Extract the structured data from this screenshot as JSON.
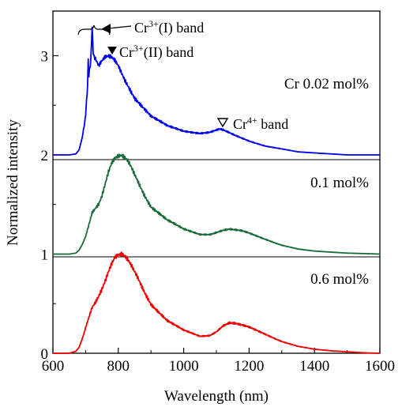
{
  "chart_data": {
    "type": "line",
    "xlabel": "Wavelength (nm)",
    "ylabel": "Normalized intensity",
    "xlim": [
      600,
      1600
    ],
    "ylim": [
      0,
      3.45
    ],
    "x_ticks": [
      600,
      800,
      1000,
      1200,
      1400,
      1600
    ],
    "y_ticks": [
      0,
      1,
      2,
      3
    ],
    "x_tick_labels": [
      "600",
      "800",
      "1000",
      "1200",
      "1400",
      "1600"
    ],
    "y_tick_labels": [
      "0",
      "1",
      "2",
      "3"
    ],
    "grid": false,
    "legend": "none",
    "offset_baselines": [
      2,
      1
    ],
    "series": [
      {
        "name": "Cr 0.02 mol%",
        "color": "#0000ee",
        "x": [
          600,
          650,
          670,
          680,
          690,
          695,
          700,
          703,
          706,
          708,
          710,
          713,
          716,
          720,
          723,
          726,
          730,
          740,
          750,
          760,
          770,
          780,
          790,
          800,
          820,
          850,
          900,
          950,
          1000,
          1050,
          1080,
          1100,
          1110,
          1120,
          1140,
          1160,
          1200,
          1250,
          1300,
          1350,
          1400,
          1450,
          1500,
          1600
        ],
        "y": [
          2.0,
          2.0,
          2.01,
          2.05,
          2.18,
          2.28,
          2.4,
          2.55,
          2.7,
          2.95,
          2.8,
          2.88,
          2.96,
          3.28,
          3.05,
          2.98,
          2.96,
          2.89,
          2.94,
          2.98,
          2.99,
          2.98,
          2.95,
          2.9,
          2.76,
          2.58,
          2.39,
          2.29,
          2.24,
          2.22,
          2.23,
          2.25,
          2.26,
          2.25,
          2.22,
          2.19,
          2.14,
          2.09,
          2.06,
          2.03,
          2.02,
          2.01,
          2.0,
          2.0
        ]
      },
      {
        "name": "0.1 mol%",
        "color": "#1a6b3a",
        "x": [
          600,
          650,
          670,
          680,
          690,
          700,
          710,
          720,
          730,
          740,
          750,
          760,
          770,
          780,
          790,
          800,
          810,
          820,
          830,
          840,
          860,
          880,
          900,
          950,
          1000,
          1050,
          1080,
          1100,
          1120,
          1140,
          1160,
          1180,
          1200,
          1250,
          1300,
          1350,
          1400,
          1450,
          1500,
          1550,
          1600
        ],
        "y": [
          1.0,
          1.0,
          1.01,
          1.04,
          1.1,
          1.18,
          1.3,
          1.42,
          1.46,
          1.5,
          1.58,
          1.7,
          1.82,
          1.91,
          1.96,
          1.98,
          1.99,
          1.97,
          1.94,
          1.88,
          1.74,
          1.6,
          1.48,
          1.34,
          1.25,
          1.2,
          1.2,
          1.22,
          1.24,
          1.25,
          1.24,
          1.23,
          1.21,
          1.15,
          1.09,
          1.05,
          1.03,
          1.02,
          1.01,
          1.005,
          1.0
        ]
      },
      {
        "name": "0.6 mol%",
        "color": "#ee0000",
        "x": [
          600,
          650,
          670,
          680,
          690,
          700,
          710,
          720,
          730,
          740,
          750,
          760,
          770,
          780,
          790,
          800,
          810,
          820,
          830,
          840,
          860,
          880,
          900,
          950,
          1000,
          1050,
          1080,
          1100,
          1120,
          1140,
          1160,
          1180,
          1200,
          1250,
          1300,
          1350,
          1400,
          1450,
          1500,
          1550,
          1600
        ],
        "y": [
          0.0,
          0.0,
          0.02,
          0.06,
          0.15,
          0.26,
          0.37,
          0.47,
          0.52,
          0.58,
          0.65,
          0.73,
          0.82,
          0.9,
          0.96,
          0.98,
          0.99,
          0.97,
          0.93,
          0.88,
          0.76,
          0.62,
          0.5,
          0.33,
          0.23,
          0.17,
          0.18,
          0.22,
          0.28,
          0.31,
          0.3,
          0.28,
          0.26,
          0.19,
          0.12,
          0.07,
          0.04,
          0.025,
          0.015,
          0.005,
          0.0
        ]
      }
    ],
    "annotations": [
      {
        "id": "cr3-1",
        "text_base": "Cr",
        "text_sup": "3+",
        "text_rest": "(I) band",
        "marker": "←"
      },
      {
        "id": "cr3-2",
        "text_base": "Cr",
        "text_sup": "3+",
        "text_rest": "(II) band",
        "marker": "▼"
      },
      {
        "id": "cr4",
        "text_base": "Cr",
        "text_sup": "4+",
        "text_rest": " band",
        "marker": "▽"
      }
    ],
    "curve_labels": [
      {
        "text": "Cr 0.02 mol%"
      },
      {
        "text": "0.1 mol%"
      },
      {
        "text": "0.6 mol%"
      }
    ]
  }
}
